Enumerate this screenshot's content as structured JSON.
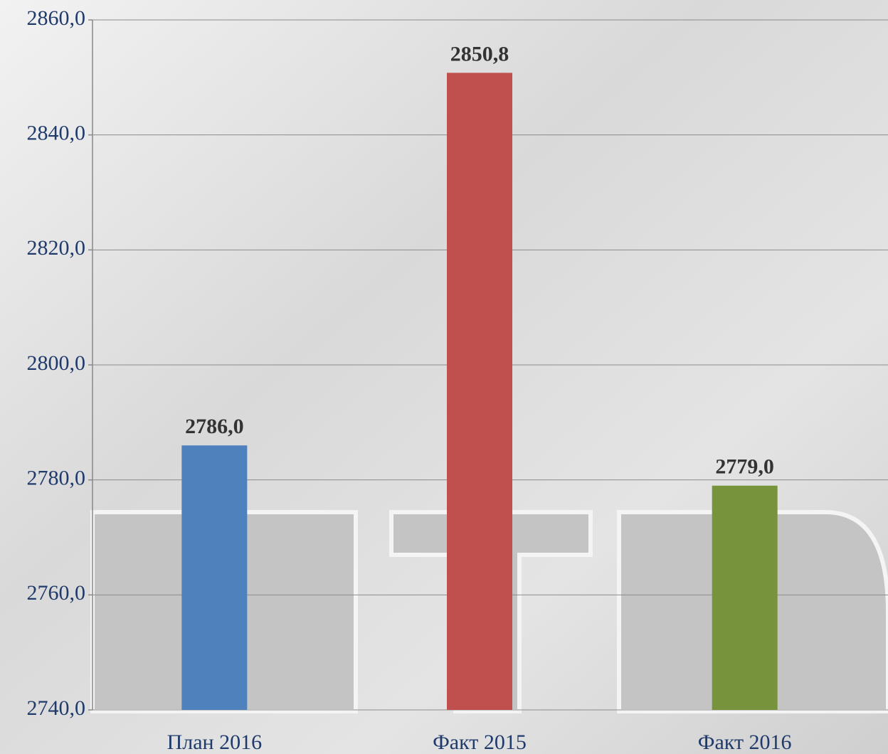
{
  "chart_data": {
    "type": "bar",
    "categories": [
      "План 2016",
      "Факт 2015",
      "Факт 2016"
    ],
    "values": [
      2786.0,
      2850.8,
      2779.0
    ],
    "value_labels": [
      "2786,0",
      "2850,8",
      "2779,0"
    ],
    "colors": [
      "#4f81bd",
      "#c0504d",
      "#77933c"
    ],
    "ylim": [
      2740,
      2860
    ],
    "yticks": [
      {
        "value": 2740,
        "label": "2740,0"
      },
      {
        "value": 2760,
        "label": "2760,0"
      },
      {
        "value": 2780,
        "label": "2780,0"
      },
      {
        "value": 2800,
        "label": "2800,0"
      },
      {
        "value": 2820,
        "label": "2820,0"
      },
      {
        "value": 2840,
        "label": "2840,0"
      },
      {
        "value": 2860,
        "label": "2860,0"
      }
    ],
    "grid": true
  }
}
